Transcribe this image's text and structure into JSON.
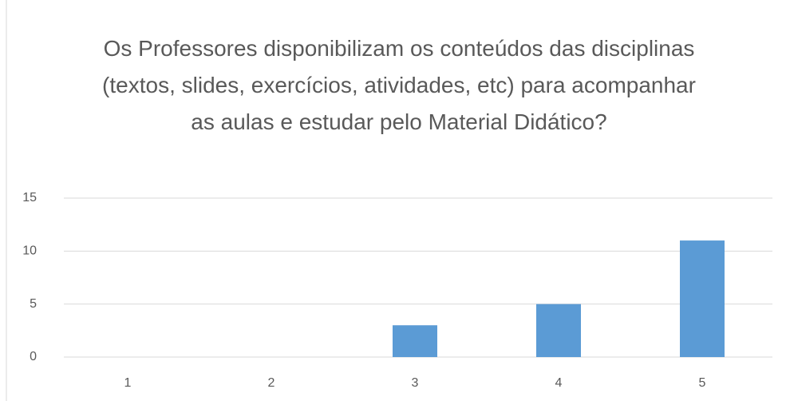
{
  "chart_data": {
    "type": "bar",
    "title": "Os Professores disponibilizam os conteúdos das disciplinas (textos, slides, exercícios, atividades, etc) para acompanhar as aulas e estudar pelo Material Didático?",
    "categories": [
      "1",
      "2",
      "3",
      "4",
      "5"
    ],
    "values": [
      0,
      0,
      3,
      5,
      11
    ],
    "color": "#5b9bd5",
    "ylim": [
      0,
      15
    ],
    "yticks": [
      0,
      5,
      10,
      15
    ],
    "grid": true
  }
}
